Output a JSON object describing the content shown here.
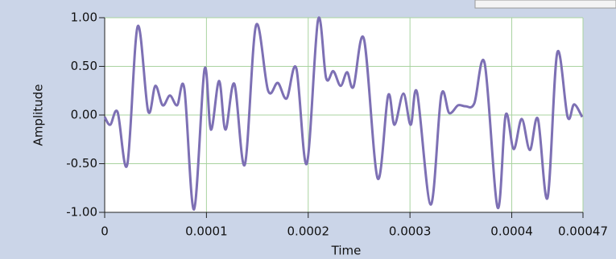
{
  "chart_data": {
    "type": "line",
    "xlabel": "Time",
    "ylabel": "Amplitude",
    "x": [
      0,
      5.5e-06,
      1.27e-05,
      2.22e-05,
      3.24e-05,
      4.27e-05,
      4.98e-05,
      5.7e-05,
      6.41e-05,
      7.12e-05,
      7.83e-05,
      8.78e-05,
      9.81e-05,
      0.0001044,
      0.0001124,
      0.0001187,
      0.0001274,
      0.0001377,
      0.0001487,
      0.0001606,
      0.0001701,
      0.0001788,
      0.0001883,
      0.0001986,
      0.0002097,
      0.0002176,
      0.0002247,
      0.0002318,
      0.0002382,
      0.0002445,
      0.0002548,
      0.0002682,
      0.0002785,
      0.0002848,
      0.0002935,
      0.0003007,
      0.000307,
      0.0003204,
      0.0003307,
      0.0003386,
      0.0003473,
      0.0003545,
      0.0003632,
      0.0003734,
      0.0003861,
      0.000394,
      0.0004019,
      0.0004098,
      0.0004178,
      0.0004257,
      0.0004352,
      0.0004447,
      0.0004549,
      0.0004613,
      0.0004692
    ],
    "series": [
      {
        "name": "Amplitude",
        "color": "#7d70b4",
        "values": [
          -0.02,
          -0.1,
          0.03,
          -0.51,
          0.91,
          0.04,
          0.3,
          0.1,
          0.2,
          0.1,
          0.27,
          -0.97,
          0.47,
          -0.15,
          0.35,
          -0.15,
          0.32,
          -0.51,
          0.92,
          0.25,
          0.33,
          0.17,
          0.48,
          -0.5,
          0.98,
          0.38,
          0.45,
          0.3,
          0.44,
          0.29,
          0.78,
          -0.65,
          0.2,
          -0.1,
          0.22,
          -0.1,
          0.23,
          -0.92,
          0.2,
          0.02,
          0.1,
          0.09,
          0.12,
          0.53,
          -0.95,
          0,
          -0.35,
          -0.04,
          -0.36,
          -0.04,
          -0.85,
          0.64,
          -0.02,
          0.11,
          -0.02
        ]
      }
    ],
    "xlim": [
      0,
      0.00047
    ],
    "xticks": [
      0,
      0.0001,
      0.0002,
      0.0003,
      0.0004,
      0.00047
    ],
    "ylim": [
      -1,
      1
    ],
    "yticks": [
      {
        "value": 1,
        "label": "1.00"
      },
      {
        "value": 0.5,
        "label": "0.50"
      },
      {
        "value": 0,
        "label": "0.00"
      },
      {
        "value": -0.5,
        "label": "-0.50"
      },
      {
        "value": -1,
        "label": "-1.00"
      }
    ],
    "grid": true
  }
}
